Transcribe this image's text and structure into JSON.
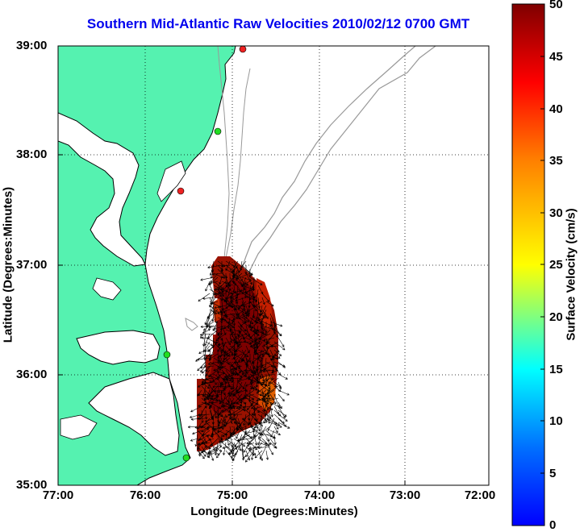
{
  "title": "Southern Mid-Atlantic Raw Velocities 2010/02/12 0700 GMT",
  "xlabel": "Longitude (Degrees:Minutes)",
  "ylabel": "Latitude (Degrees:Minutes)",
  "colorbar_label": "Surface Velocity (cm/s)",
  "x_ticks": [
    "77:00",
    "76:00",
    "75:00",
    "74:00",
    "73:00",
    "72:00"
  ],
  "y_ticks": [
    "39:00",
    "38:00",
    "37:00",
    "36:00",
    "35:00"
  ],
  "colorbar_ticks": [
    "50",
    "45",
    "40",
    "35",
    "30",
    "25",
    "20",
    "15",
    "10",
    "5",
    "0"
  ],
  "colors": {
    "land": "#55f2b0",
    "coastline": "#000000",
    "bathymetry": "#999999",
    "grid": "#000000",
    "station_active": "#22dd22",
    "station_inactive": "#ee2222",
    "velocity_low": "#0000ff",
    "velocity_mid": "#ffff00",
    "velocity_high": "#7f0000"
  },
  "chart_data": {
    "type": "heatmap",
    "xlim": [
      -77,
      -72
    ],
    "ylim": [
      35,
      39
    ],
    "clim": [
      0,
      50
    ],
    "colormap": "jet",
    "grid": true,
    "colorbar_placement": "right",
    "stations": [
      {
        "lon": -74.87,
        "lat": 38.97,
        "status": "inactive"
      },
      {
        "lon": -75.15,
        "lat": 38.22,
        "status": "active"
      },
      {
        "lon": -75.58,
        "lat": 37.68,
        "status": "inactive"
      },
      {
        "lon": -75.73,
        "lat": 36.19,
        "status": "active"
      },
      {
        "lon": -75.52,
        "lat": 35.26,
        "status": "active"
      }
    ],
    "velocity_field": {
      "lon_range": [
        -75.45,
        -74.45
      ],
      "lat_range": [
        35.3,
        37.1
      ],
      "speed_range_cm_s": [
        35,
        50
      ],
      "dominant_direction": "south-southwest"
    }
  }
}
